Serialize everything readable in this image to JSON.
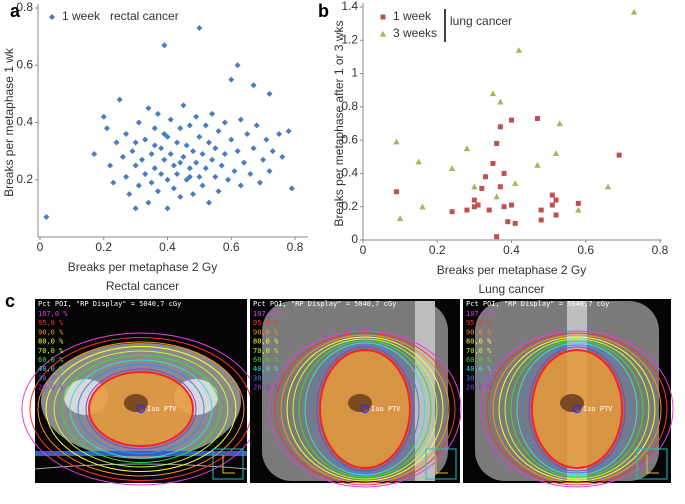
{
  "chart_data": [
    {
      "type": "scatter",
      "panel": "a",
      "x_label": "Breaks per metaphase 2 Gy",
      "y_label": "Breaks per metaphase 1 wk",
      "caption": "Rectal cancer",
      "legend_note": "rectal cancer",
      "xlim": [
        0,
        0.8
      ],
      "ylim": [
        0,
        0.8
      ],
      "xticks": [
        0,
        0.2,
        0.4,
        0.6,
        0.8
      ],
      "yticks": [
        0.2,
        0.4,
        0.6,
        0.8
      ],
      "series": [
        {
          "name": "1 week",
          "color": "#4a7cc0",
          "marker": "diamond",
          "x": [
            0.02,
            0.17,
            0.2,
            0.21,
            0.22,
            0.23,
            0.24,
            0.25,
            0.26,
            0.27,
            0.27,
            0.28,
            0.29,
            0.3,
            0.3,
            0.31,
            0.31,
            0.32,
            0.33,
            0.33,
            0.34,
            0.34,
            0.35,
            0.35,
            0.36,
            0.36,
            0.37,
            0.37,
            0.38,
            0.38,
            0.39,
            0.39,
            0.4,
            0.4,
            0.4,
            0.41,
            0.41,
            0.42,
            0.42,
            0.43,
            0.43,
            0.44,
            0.44,
            0.45,
            0.45,
            0.46,
            0.46,
            0.47,
            0.47,
            0.48,
            0.48,
            0.49,
            0.49,
            0.5,
            0.5,
            0.5,
            0.51,
            0.51,
            0.52,
            0.52,
            0.53,
            0.53,
            0.54,
            0.54,
            0.55,
            0.55,
            0.56,
            0.56,
            0.57,
            0.58,
            0.58,
            0.59,
            0.6,
            0.6,
            0.61,
            0.62,
            0.62,
            0.63,
            0.63,
            0.64,
            0.65,
            0.66,
            0.67,
            0.67,
            0.68,
            0.69,
            0.7,
            0.71,
            0.72,
            0.72,
            0.73,
            0.75,
            0.76,
            0.78,
            0.79,
            0.36,
            0.44,
            0.39,
            0.47,
            0.3
          ],
          "values": [
            0.07,
            0.29,
            0.42,
            0.38,
            0.25,
            0.19,
            0.33,
            0.48,
            0.28,
            0.21,
            0.36,
            0.15,
            0.3,
            0.25,
            0.1,
            0.4,
            0.18,
            0.27,
            0.34,
            0.22,
            0.45,
            0.12,
            0.29,
            0.19,
            0.38,
            0.24,
            0.16,
            0.43,
            0.31,
            0.22,
            0.67,
            0.27,
            0.35,
            0.1,
            0.2,
            0.29,
            0.41,
            0.17,
            0.25,
            0.33,
            0.22,
            0.38,
            0.14,
            0.28,
            0.46,
            0.2,
            0.32,
            0.24,
            0.39,
            0.15,
            0.3,
            0.26,
            0.42,
            0.73,
            0.21,
            0.35,
            0.18,
            0.29,
            0.39,
            0.24,
            0.33,
            0.12,
            0.27,
            0.43,
            0.21,
            0.31,
            0.37,
            0.16,
            0.25,
            0.4,
            0.29,
            0.2,
            0.55,
            0.34,
            0.23,
            0.6,
            0.3,
            0.41,
            0.18,
            0.26,
            0.36,
            0.22,
            0.53,
            0.31,
            0.39,
            0.19,
            0.27,
            0.34,
            0.5,
            0.23,
            0.3,
            0.36,
            0.28,
            0.37,
            0.17,
            0.32,
            0.26,
            0.36,
            0.21,
            0.33
          ]
        }
      ]
    },
    {
      "type": "scatter",
      "panel": "b",
      "x_label": "Breaks per metaphase 2 Gy",
      "y_label": "Breaks per metaphase after 1 or 3 wks",
      "caption": "Lung cancer",
      "legend_note": "lung cancer",
      "xlim": [
        0,
        0.8
      ],
      "ylim": [
        0,
        1.4
      ],
      "xticks": [
        0,
        0.2,
        0.4,
        0.6,
        0.8
      ],
      "yticks": [
        0,
        0.2,
        0.4,
        0.6,
        0.8,
        1,
        1.2,
        1.4
      ],
      "series": [
        {
          "name": "1 week",
          "color": "#c0504d",
          "marker": "square",
          "x": [
            0.09,
            0.24,
            0.28,
            0.3,
            0.31,
            0.32,
            0.33,
            0.34,
            0.35,
            0.36,
            0.36,
            0.37,
            0.37,
            0.38,
            0.38,
            0.39,
            0.4,
            0.41,
            0.47,
            0.48,
            0.48,
            0.51,
            0.51,
            0.52,
            0.52,
            0.58,
            0.69,
            0.3,
            0.4
          ],
          "values": [
            0.29,
            0.17,
            0.18,
            0.24,
            0.21,
            0.31,
            0.38,
            0.18,
            0.46,
            0.58,
            0.02,
            0.68,
            0.32,
            0.4,
            0.2,
            0.11,
            0.72,
            0.1,
            0.73,
            0.18,
            0.12,
            0.27,
            0.21,
            0.24,
            0.15,
            0.22,
            0.51,
            0.2,
            0.21
          ]
        },
        {
          "name": "3 weeks",
          "color": "#9bbb59",
          "marker": "triangle",
          "x": [
            0.09,
            0.1,
            0.15,
            0.16,
            0.24,
            0.28,
            0.35,
            0.37,
            0.41,
            0.42,
            0.47,
            0.52,
            0.53,
            0.58,
            0.66,
            0.73,
            0.36,
            0.3
          ],
          "values": [
            0.59,
            0.13,
            0.47,
            0.2,
            0.43,
            0.55,
            0.88,
            0.83,
            0.34,
            1.14,
            0.45,
            0.52,
            0.7,
            0.18,
            0.32,
            1.37,
            0.26,
            0.32
          ]
        }
      ]
    }
  ],
  "panel_c": {
    "label": "c",
    "header": "Pct POI, \"RP Display\" = 5040,7 cGy",
    "target_label": "Iso PTV",
    "isodoses": [
      {
        "label": "107,0 %",
        "color": "#e040e0"
      },
      {
        "label": "95,0 %",
        "color": "#ff3030"
      },
      {
        "label": "90,0 %",
        "color": "#ff9020"
      },
      {
        "label": "80,0 %",
        "color": "#ffff30"
      },
      {
        "label": "70,0 %",
        "color": "#c0ff30"
      },
      {
        "label": "60,0 %",
        "color": "#30e030"
      },
      {
        "label": "40,0 %",
        "color": "#30e0e0"
      },
      {
        "label": "30,0 %",
        "color": "#4080ff"
      },
      {
        "label": "20,0 %",
        "color": "#8040e0"
      }
    ]
  }
}
